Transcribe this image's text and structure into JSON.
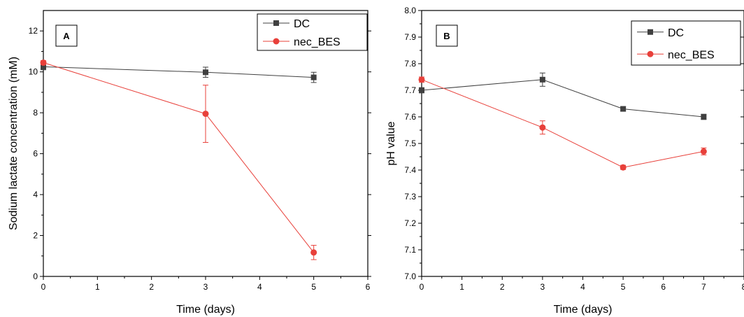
{
  "chart_data": [
    {
      "type": "line",
      "panel_label": "A",
      "xlabel": "Time (days)",
      "ylabel": "Sodium lactate concentration (mM)",
      "xlim": [
        0,
        6
      ],
      "ylim": [
        0,
        13
      ],
      "xticks": [
        0,
        1,
        2,
        3,
        4,
        5,
        6
      ],
      "xtick_labels": [
        "0",
        "1",
        "2",
        "3",
        "4",
        "5",
        "6"
      ],
      "yticks": [
        0,
        2,
        4,
        6,
        8,
        10,
        12
      ],
      "ytick_labels": [
        "0",
        "2",
        "4",
        "6",
        "8",
        "10",
        "12"
      ],
      "legend_position": "top-right",
      "series": [
        {
          "name": "DC",
          "color": "#404040",
          "marker": "square",
          "x": [
            0,
            3,
            5
          ],
          "y": [
            10.25,
            9.98,
            9.73
          ],
          "err": [
            0.15,
            0.25,
            0.25
          ]
        },
        {
          "name": "nec_BES",
          "color": "#e8403a",
          "marker": "circle",
          "x": [
            0,
            3,
            5
          ],
          "y": [
            10.45,
            7.95,
            1.17
          ],
          "err": [
            0.1,
            1.4,
            0.35
          ]
        }
      ]
    },
    {
      "type": "line",
      "panel_label": "B",
      "xlabel": "Time (days)",
      "ylabel": "pH value",
      "xlim": [
        0,
        8
      ],
      "ylim": [
        7.0,
        8.0
      ],
      "xticks": [
        0,
        1,
        2,
        3,
        4,
        5,
        6,
        7,
        8
      ],
      "xtick_labels": [
        "0",
        "1",
        "2",
        "3",
        "4",
        "5",
        "6",
        "7",
        "8"
      ],
      "yticks": [
        7.0,
        7.1,
        7.2,
        7.3,
        7.4,
        7.5,
        7.6,
        7.7,
        7.8,
        7.9,
        8.0
      ],
      "ytick_labels": [
        "7.0",
        "7.1",
        "7.2",
        "7.3",
        "7.4",
        "7.5",
        "7.6",
        "7.7",
        "7.8",
        "7.9",
        "8.0"
      ],
      "legend_position": "top-right",
      "series": [
        {
          "name": "DC",
          "color": "#404040",
          "marker": "square",
          "x": [
            0,
            3,
            5,
            7
          ],
          "y": [
            7.7,
            7.74,
            7.63,
            7.6
          ],
          "err": [
            0.01,
            0.025,
            0.008,
            0.01
          ]
        },
        {
          "name": "nec_BES",
          "color": "#e8403a",
          "marker": "circle",
          "x": [
            0,
            3,
            5,
            7
          ],
          "y": [
            7.74,
            7.56,
            7.41,
            7.47
          ],
          "err": [
            0.01,
            0.025,
            0.008,
            0.013
          ]
        }
      ]
    }
  ]
}
